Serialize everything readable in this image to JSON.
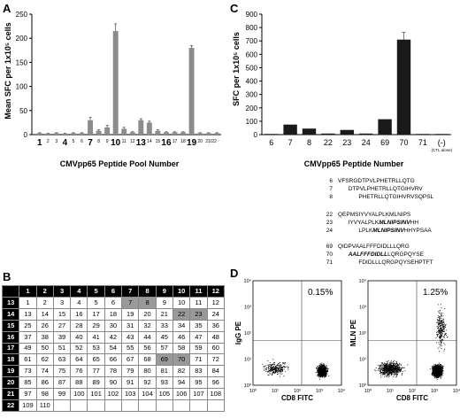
{
  "panel_labels": [
    "A",
    "C",
    "B",
    "D"
  ],
  "chart_data": [
    {
      "type": "bar",
      "panel": "A",
      "ylabel": "Mean SFC per 1x10⁵ cells",
      "xlabel": "CMVpp65 Peptide Pool Number",
      "ylim": [
        0,
        250
      ],
      "yticks": [
        0,
        50,
        100,
        150,
        200,
        250
      ],
      "categories": [
        "1",
        "2",
        "3",
        "4",
        "5",
        "6",
        "7",
        "8",
        "9",
        "10",
        "11",
        "12",
        "13",
        "14",
        "15",
        "16",
        "17",
        "18",
        "19",
        "20",
        "21",
        "22"
      ],
      "values": [
        3,
        2,
        3,
        2,
        3,
        3,
        30,
        8,
        15,
        215,
        12,
        5,
        30,
        25,
        8,
        5,
        5,
        5,
        180,
        3,
        3,
        3
      ],
      "errors": [
        1,
        1,
        1,
        1,
        1,
        1,
        6,
        2,
        4,
        15,
        3,
        1,
        3,
        3,
        2,
        1,
        1,
        1,
        5,
        1,
        1,
        1
      ],
      "tick_labels": [
        "1",
        "2",
        "3",
        "4",
        "5",
        "6",
        "7",
        "8",
        "9",
        "10",
        "11",
        "12",
        "13",
        "14",
        "15",
        "16",
        "17",
        "18",
        "19",
        "20",
        "21/22"
      ],
      "large_tick_labels": [
        "1",
        "4",
        "7",
        "10",
        "13",
        "16",
        "19"
      ]
    },
    {
      "type": "bar",
      "panel": "C",
      "ylabel": "SFC per 1x10⁵ cells",
      "xlabel": "CMVpp65 Peptide Number",
      "ylim": [
        0,
        900
      ],
      "yticks": [
        0,
        100,
        200,
        300,
        400,
        500,
        600,
        700,
        800,
        900
      ],
      "categories": [
        "6",
        "7",
        "8",
        "22",
        "23",
        "24",
        "69",
        "70",
        "71",
        "(-)"
      ],
      "values": [
        5,
        75,
        45,
        8,
        35,
        8,
        115,
        710,
        5,
        5
      ],
      "errors": [
        0,
        0,
        0,
        0,
        0,
        0,
        0,
        55,
        0,
        0
      ],
      "ctl_note": "(CTL alone)"
    },
    {
      "type": "table",
      "panel": "B",
      "col_headers": [
        "1",
        "2",
        "3",
        "4",
        "5",
        "6",
        "7",
        "8",
        "9",
        "10",
        "11",
        "12"
      ],
      "row_headers": [
        "13",
        "14",
        "15",
        "16",
        "17",
        "18",
        "19",
        "20",
        "21",
        "22"
      ],
      "rows": [
        [
          "1",
          "2",
          "3",
          "4",
          "5",
          "6",
          "7",
          "8",
          "9",
          "10",
          "11",
          "12"
        ],
        [
          "13",
          "14",
          "15",
          "16",
          "17",
          "18",
          "19",
          "20",
          "21",
          "22",
          "23",
          "24"
        ],
        [
          "25",
          "26",
          "27",
          "28",
          "29",
          "30",
          "31",
          "32",
          "33",
          "34",
          "35",
          "36"
        ],
        [
          "37",
          "38",
          "39",
          "40",
          "41",
          "42",
          "43",
          "44",
          "45",
          "46",
          "47",
          "48"
        ],
        [
          "49",
          "50",
          "51",
          "52",
          "53",
          "54",
          "55",
          "56",
          "57",
          "58",
          "59",
          "60"
        ],
        [
          "61",
          "62",
          "63",
          "64",
          "65",
          "66",
          "67",
          "68",
          "69",
          "70",
          "71",
          "72"
        ],
        [
          "73",
          "74",
          "75",
          "76",
          "77",
          "78",
          "79",
          "80",
          "81",
          "82",
          "83",
          "84"
        ],
        [
          "85",
          "86",
          "87",
          "88",
          "89",
          "90",
          "91",
          "92",
          "93",
          "94",
          "95",
          "96"
        ],
        [
          "97",
          "98",
          "99",
          "100",
          "101",
          "102",
          "103",
          "104",
          "105",
          "106",
          "107",
          "108"
        ],
        [
          "109",
          "110",
          "",
          "",
          "",
          "",
          "",
          "",
          "",
          "",
          "",
          ""
        ]
      ],
      "highlighted": [
        "7",
        "8",
        "22",
        "23",
        "69",
        "70"
      ]
    },
    {
      "type": "scatter",
      "panel": "D",
      "plots": [
        {
          "ylabel": "IgG PE",
          "xlabel": "CD8 FITC",
          "percent": "0.15%"
        },
        {
          "ylabel": "MLN PE",
          "xlabel": "CD8 FITC",
          "percent": "1.25%"
        }
      ],
      "axis_ticks": [
        "10⁰",
        "10¹",
        "10²",
        "10³",
        "10⁴"
      ]
    }
  ],
  "sequences": [
    {
      "num": "6",
      "seq": "VFSRGDTPVLPHETRLLQTG"
    },
    {
      "num": "7",
      "seq": "DTPVLPHETRLLQTGIHVRV"
    },
    {
      "num": "8",
      "seq": "PHETRLLQTGIHVRVSQPSL"
    },
    {
      "num": "22",
      "seq": "QEPMSIYVYALPLKMLNIPS"
    },
    {
      "num": "23",
      "pre": "IYVYALPLK",
      "bold": "MLNIPSINV",
      "post": "HH"
    },
    {
      "num": "24",
      "pre": "LPLK",
      "bold": "MLNIPSINV",
      "post": "HHYPSAA"
    },
    {
      "num": "69",
      "seq": "QIDPVAALFFFDIDLLLQRG"
    },
    {
      "num": "70",
      "pre": "",
      "bold": "AALFFFDIDLL",
      "post": "LQRGPQYSE"
    },
    {
      "num": "71",
      "seq": "FDIDLLLQRGPQYSEHPTFT"
    }
  ]
}
